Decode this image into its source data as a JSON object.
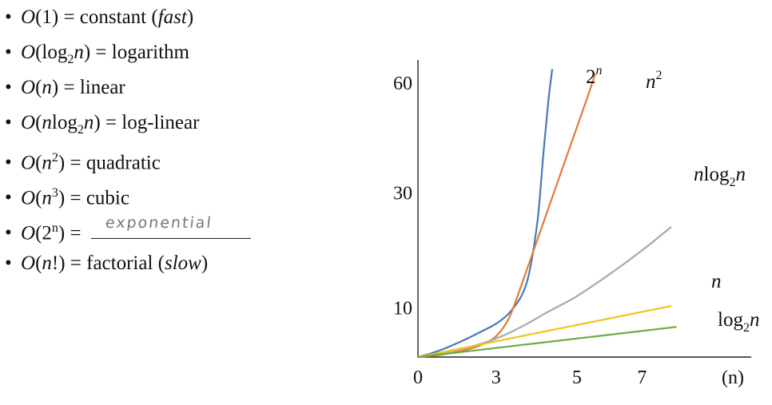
{
  "notation_list": {
    "bullet": "•",
    "items": [
      {
        "pre": "O(1) = constant (",
        "em": "fast",
        "post": ")"
      },
      {
        "pre": "O(log",
        "sub": "2",
        "mid": "n) = logarithm"
      },
      {
        "pre": "O(n) = linear"
      },
      {
        "pre": "O(nlog",
        "sub": "2",
        "mid": "n) = log-linear"
      },
      {
        "pre": "O(n",
        "sup": "2",
        "mid": ") = quadratic"
      },
      {
        "pre": "O(n",
        "sup": "3",
        "mid": ") = cubic"
      },
      {
        "pre": "O(2",
        "sup": "n",
        "mid": ") = ",
        "handwritten": "exponential"
      },
      {
        "pre": "O(n!) = factorial (",
        "em": "slow",
        "post": ")"
      }
    ]
  },
  "chart_data": {
    "type": "line",
    "x_ticks": [
      "0",
      "3",
      "5",
      "7"
    ],
    "y_ticks": [
      "10",
      "30",
      "60"
    ],
    "xlabel": "(n)",
    "series": [
      {
        "name": "2^n",
        "color": "#4a78b6",
        "x": [
          0,
          0.5,
          1,
          1.5,
          2,
          2.5,
          3,
          3.5,
          4,
          4.3,
          4.6,
          4.8,
          5.0,
          5.15
        ],
        "y": [
          0,
          0.8,
          1.8,
          3.0,
          4.3,
          5.7,
          7.2,
          9.5,
          13.5,
          19.0,
          30.0,
          43.0,
          55.0,
          62.0
        ]
      },
      {
        "name": "n^2",
        "color": "#e07b39",
        "x": [
          0,
          1,
          2,
          2.5,
          3,
          3.5,
          4,
          4.5,
          5,
          5.5,
          6,
          6.5,
          6.8
        ],
        "y": [
          0,
          0.6,
          1.8,
          2.8,
          4.5,
          8.5,
          16.0,
          24.0,
          32.0,
          40.0,
          48.0,
          56.0,
          61.0
        ]
      },
      {
        "name": "nlog2n",
        "color": "#a9a9a9",
        "x": [
          0,
          1,
          2,
          3,
          4,
          5,
          6,
          7,
          8,
          9,
          9.7
        ],
        "y": [
          0,
          1.0,
          2.2,
          4.0,
          6.6,
          9.8,
          12.8,
          16.5,
          20.5,
          24.8,
          28.0
        ]
      },
      {
        "name": "n",
        "color": "#f0c419",
        "x": [
          0,
          9.7
        ],
        "y": [
          0,
          11.0
        ]
      },
      {
        "name": "log2n",
        "color": "#6aab45",
        "x": [
          0,
          9.9
        ],
        "y": [
          0,
          6.5
        ]
      }
    ],
    "labels": [
      {
        "series": "2^n",
        "base": "2",
        "sup": "n"
      },
      {
        "series": "n^2",
        "base": "n",
        "sup": "2"
      },
      {
        "series": "nlog2n",
        "pre": "nlog",
        "sub": "2",
        "post": "n"
      },
      {
        "series": "n",
        "pre": "n"
      },
      {
        "series": "log2n",
        "pre": "log",
        "sub": "2",
        "post": "n"
      }
    ]
  }
}
